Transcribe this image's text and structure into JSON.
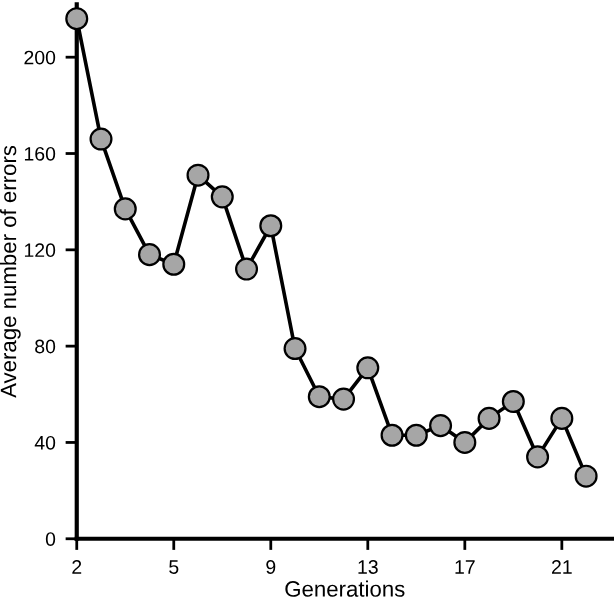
{
  "chart_data": {
    "type": "line",
    "xlabel": "Generations",
    "ylabel": "Average number of errors",
    "categories": [
      "2",
      null,
      null,
      null,
      "5",
      null,
      null,
      null,
      "9",
      null,
      null,
      null,
      "13",
      null,
      null,
      null,
      "17",
      null,
      null,
      null,
      "21",
      null
    ],
    "series": [
      {
        "color": "#a6a6a6",
        "values": [
          216,
          166,
          137,
          118,
          114,
          151,
          142,
          112,
          130,
          79,
          59,
          58,
          71,
          43,
          43,
          47,
          40,
          50,
          57,
          34,
          50,
          26
        ]
      }
    ],
    "ylim": [
      0,
      222
    ],
    "yticks": [
      0,
      40,
      80,
      120,
      160,
      200
    ],
    "marker": "circle",
    "line_style": "solid",
    "grid": false,
    "legend": false
  }
}
